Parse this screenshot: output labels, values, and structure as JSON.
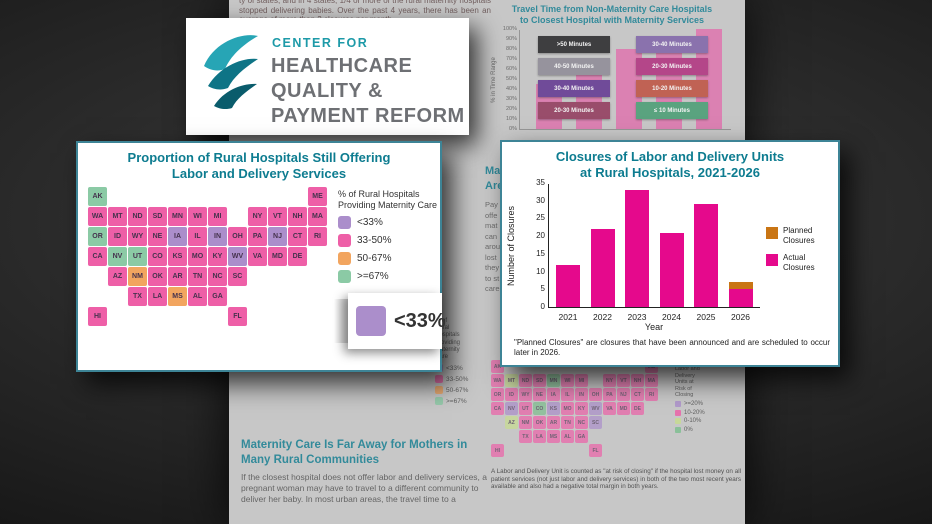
{
  "theme": {
    "accent_teal": "#0d7c90",
    "logo_teal": "#1d9aa8",
    "logo_gray": "#6e7074",
    "magenta": "#e5098c",
    "planned_orange": "#c97514"
  },
  "logo": {
    "top": "CENTER FOR",
    "line1": "HEALTHCARE",
    "line2": "QUALITY &",
    "line3": "PAYMENT REFORM"
  },
  "doc": {
    "top_paragraph": "ty of states, and in 4 states, 1/4 or more of the rural maternity hospitals stopped delivering babies. Over the past 4 years, there has been an average of more than 2 closures per month.",
    "travel_chart": {
      "title_line1": "Travel Time from Non-Maternity Care Hospitals",
      "title_line2": "to Closest Hospital with Maternity Services"
    },
    "mid_fragments": {
      "heading_lines": [
        "Ma",
        "Are"
      ],
      "body_lines": [
        "Pay",
        "offe",
        "mat",
        "can",
        "arou",
        "lost",
        "they",
        "to st",
        "care"
      ]
    },
    "map_legend_fragment": {
      "title_lines": [
        "% of",
        "Rural",
        "Hospitals",
        "Providing",
        "Maternity",
        "Care"
      ],
      "items": [
        {
          "label": "<33%",
          "color": "#ab8ecb"
        },
        {
          "label": "33-50%",
          "color": "#ee5fa7"
        },
        {
          "label": "50-67%",
          "color": "#f2a55f"
        },
        {
          "label": ">=67%",
          "color": "#8bcaa5"
        }
      ]
    },
    "bottom_left": {
      "heading": "Maternity Care Is Far Away for Mothers in Many Rural Communities",
      "paragraph": "If the closest hospital does not offer labor and delivery services, a pregnant woman may have to travel to a different community to deliver her baby. In most urban areas, the travel time to a"
    },
    "at_risk": {
      "legend_title_lines": [
        "Labor and",
        "Delivery",
        "Units at",
        "Risk of",
        "Closing"
      ],
      "items": [
        {
          "label": ">=20%",
          "color": "#ab8ecb"
        },
        {
          "label": "10-20%",
          "color": "#ee5fa7"
        },
        {
          "label": "0-10%",
          "color": "#c7dd8e"
        },
        {
          "label": "0%",
          "color": "#7bbf8e"
        }
      ],
      "footnote": "A Labor and Delivery Unit is counted as \"at risk of closing\" if the hospital lost money on all patient services (not just labor and delivery services) in both of the two most recent years available and also had a negative total margin in both years."
    }
  },
  "map_callout": {
    "title_line1": "Proportion of Rural Hospitals Still Offering",
    "title_line2": "Labor and Delivery Services",
    "legend_title": "% of Rural Hospitals Providing Maternity Care",
    "zoom_label": "<33%"
  },
  "closures_callout": {
    "title_line1": "Closures of Labor and Delivery Units",
    "title_line2": "at Rural Hospitals, 2021-2026",
    "footnote": "\"Planned Closures\" are closures that have been announced and are scheduled to occur later in 2026."
  },
  "chart_data": [
    {
      "id": "closures",
      "type": "bar",
      "title": "Closures of Labor and Delivery Units at Rural Hospitals, 2021-2026",
      "categories": [
        "2021",
        "2022",
        "2023",
        "2024",
        "2025",
        "2026"
      ],
      "series": [
        {
          "name": "Actual Closures",
          "color": "#e5098c",
          "values": [
            12,
            22,
            33,
            21,
            29,
            5
          ]
        },
        {
          "name": "Planned Closures",
          "color": "#c97514",
          "values": [
            0,
            0,
            0,
            0,
            0,
            2
          ]
        }
      ],
      "xlabel": "Year",
      "ylabel": "Number of Closures",
      "ylim": [
        0,
        35
      ],
      "ytick_step": 5,
      "legend_position": "right",
      "legend_order": [
        "Planned Closures",
        "Actual Closures"
      ]
    },
    {
      "id": "travel_time",
      "type": "stacked-bar",
      "title": "Travel Time from Non-Maternity Care Hospitals to Closest Hospital with Maternity Services",
      "ylabel": "% in Time Range",
      "ylim": [
        0,
        100
      ],
      "ytick_step": 10,
      "bars_visible_height_pct": [
        45,
        62,
        80,
        93,
        100
      ],
      "bar_color": "#e560a8",
      "legend_columns": [
        [
          {
            "label": ">50 Minutes",
            "color": "#1c1c1f"
          },
          {
            "label": "40-50 Minutes",
            "color": "#8a8793"
          },
          {
            "label": "30-40 Minutes",
            "color": "#5b2d8e"
          },
          {
            "label": "20-30 Minutes",
            "color": "#8e2f55"
          }
        ],
        [
          {
            "label": "30-40 Minutes",
            "color": "#7b5ea7"
          },
          {
            "label": "20-30 Minutes",
            "color": "#b0267a"
          },
          {
            "label": "10-20 Minutes",
            "color": "#bf4a38"
          },
          {
            "label": "≤ 10 Minutes",
            "color": "#3f9b6e"
          }
        ]
      ]
    },
    {
      "id": "maternity_map",
      "type": "choropleth-map",
      "title": "Proportion of Rural Hospitals Still Offering Labor and Delivery Services",
      "legend_title": "% of Rural Hospitals Providing Maternity Care",
      "categories": [
        {
          "label": "<33%",
          "color": "#ab8ecb",
          "states": [
            "IA",
            "IN",
            "WV",
            "NJ"
          ]
        },
        {
          "label": "33-50%",
          "color": "#ee5fa7",
          "states": [
            "WA",
            "MT",
            "ND",
            "SD",
            "MN",
            "WI",
            "MI",
            "NY",
            "VT",
            "NH",
            "MA",
            "ME",
            "ID",
            "WY",
            "NE",
            "IL",
            "OH",
            "PA",
            "CT",
            "RI",
            "CA",
            "CO",
            "KS",
            "MO",
            "KY",
            "VA",
            "MD",
            "DE",
            "AZ",
            "OK",
            "AR",
            "TN",
            "NC",
            "SC",
            "TX",
            "LA",
            "AL",
            "GA",
            "FL",
            "HI"
          ]
        },
        {
          "label": "50-67%",
          "color": "#f2a55f",
          "states": [
            "NM",
            "MS"
          ]
        },
        {
          "label": ">=67%",
          "color": "#8bcaa5",
          "states": [
            "OR",
            "NV",
            "UT",
            "AK"
          ]
        }
      ]
    },
    {
      "id": "at_risk_map",
      "type": "choropleth-map",
      "legend_title": "Labor and Delivery Units at Risk of Closing",
      "categories": [
        {
          "label": ">=20%",
          "color": "#ab8ecb"
        },
        {
          "label": "10-20%",
          "color": "#ee5fa7"
        },
        {
          "label": "0-10%",
          "color": "#c7dd8e"
        },
        {
          "label": "0%",
          "color": "#7bbf8e"
        }
      ]
    }
  ]
}
